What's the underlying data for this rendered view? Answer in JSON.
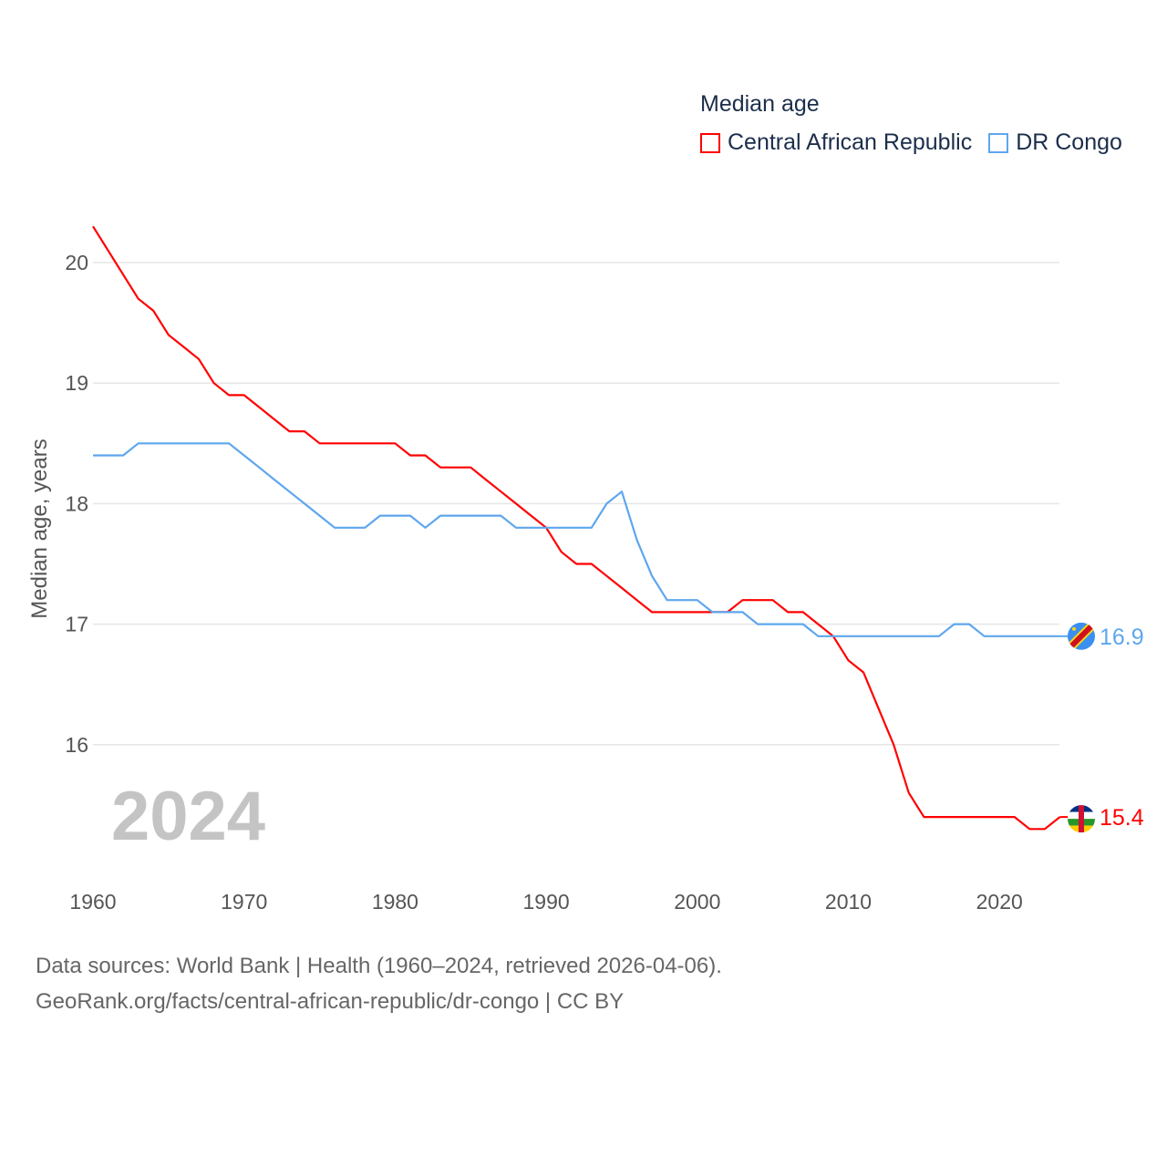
{
  "chart_data": {
    "type": "line",
    "title": "Median age",
    "ylabel": "Median age, years",
    "xlabel": "",
    "xlim": [
      1960,
      2024
    ],
    "ylim": [
      15,
      20.4
    ],
    "x_ticks": [
      "1960",
      "1970",
      "1980",
      "1990",
      "2000",
      "2010",
      "2020"
    ],
    "y_ticks": [
      "16",
      "17",
      "18",
      "19",
      "20"
    ],
    "grid": true,
    "legend_placement": "top-right",
    "x": [
      1960,
      1961,
      1962,
      1963,
      1964,
      1965,
      1966,
      1967,
      1968,
      1969,
      1970,
      1971,
      1972,
      1973,
      1974,
      1975,
      1976,
      1977,
      1978,
      1979,
      1980,
      1981,
      1982,
      1983,
      1984,
      1985,
      1986,
      1987,
      1988,
      1989,
      1990,
      1991,
      1992,
      1993,
      1994,
      1995,
      1996,
      1997,
      1998,
      1999,
      2000,
      2001,
      2002,
      2003,
      2004,
      2005,
      2006,
      2007,
      2008,
      2009,
      2010,
      2011,
      2012,
      2013,
      2014,
      2015,
      2016,
      2017,
      2018,
      2019,
      2020,
      2021,
      2022,
      2023,
      2024
    ],
    "series": [
      {
        "name": "Central African Republic",
        "color": "#ff0000",
        "end_label": "15.4",
        "flag": "central-african-republic-flag",
        "values": [
          20.3,
          20.1,
          19.9,
          19.7,
          19.6,
          19.4,
          19.3,
          19.2,
          19.0,
          18.9,
          18.9,
          18.8,
          18.7,
          18.6,
          18.6,
          18.5,
          18.5,
          18.5,
          18.5,
          18.5,
          18.5,
          18.4,
          18.4,
          18.3,
          18.3,
          18.3,
          18.2,
          18.1,
          18.0,
          17.9,
          17.8,
          17.6,
          17.5,
          17.5,
          17.4,
          17.3,
          17.2,
          17.1,
          17.1,
          17.1,
          17.1,
          17.1,
          17.1,
          17.2,
          17.2,
          17.2,
          17.1,
          17.1,
          17.0,
          16.9,
          16.7,
          16.6,
          16.3,
          16.0,
          15.6,
          15.4,
          15.4,
          15.4,
          15.4,
          15.4,
          15.4,
          15.4,
          15.3,
          15.3,
          15.4
        ]
      },
      {
        "name": "DR Congo",
        "color": "#5ea6ee",
        "end_label": "16.9",
        "flag": "dr-congo-flag",
        "values": [
          18.4,
          18.4,
          18.4,
          18.5,
          18.5,
          18.5,
          18.5,
          18.5,
          18.5,
          18.5,
          18.4,
          18.3,
          18.2,
          18.1,
          18.0,
          17.9,
          17.8,
          17.8,
          17.8,
          17.9,
          17.9,
          17.9,
          17.8,
          17.9,
          17.9,
          17.9,
          17.9,
          17.9,
          17.8,
          17.8,
          17.8,
          17.8,
          17.8,
          17.8,
          18.0,
          18.1,
          17.7,
          17.4,
          17.2,
          17.2,
          17.2,
          17.1,
          17.1,
          17.1,
          17.0,
          17.0,
          17.0,
          17.0,
          16.9,
          16.9,
          16.9,
          16.9,
          16.9,
          16.9,
          16.9,
          16.9,
          16.9,
          17.0,
          17.0,
          16.9,
          16.9,
          16.9,
          16.9,
          16.9,
          16.9
        ]
      }
    ],
    "year_watermark": "2024"
  },
  "footer": {
    "line1": "Data sources: World Bank | Health (1960–2024, retrieved 2026-04-06).",
    "line2": "GeoRank.org/facts/central-african-republic/dr-congo | CC BY"
  }
}
